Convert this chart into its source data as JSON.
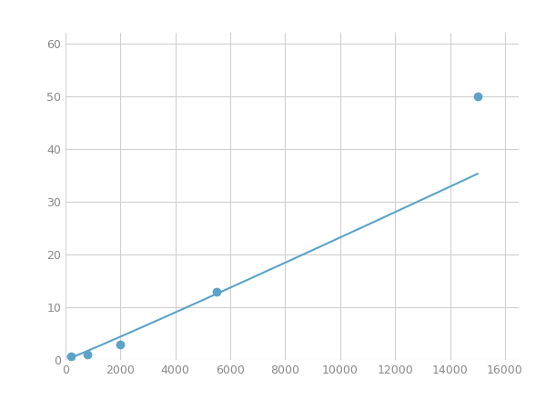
{
  "x_points": [
    200,
    800,
    2000,
    5500,
    15000
  ],
  "y_points": [
    0.7,
    1.0,
    3.0,
    13.0,
    50.0
  ],
  "line_color": "#5ba3c9",
  "marker_color": "#5ba3c9",
  "marker_size": 6,
  "line_width": 1.5,
  "xlim": [
    0,
    16500
  ],
  "ylim": [
    0,
    62
  ],
  "xticks": [
    0,
    2000,
    4000,
    6000,
    8000,
    10000,
    12000,
    14000,
    16000
  ],
  "yticks": [
    0,
    10,
    20,
    30,
    40,
    50,
    60
  ],
  "grid_color": "#d0d0d0",
  "bg_color": "#ffffff",
  "fig_bg_color": "#ffffff"
}
